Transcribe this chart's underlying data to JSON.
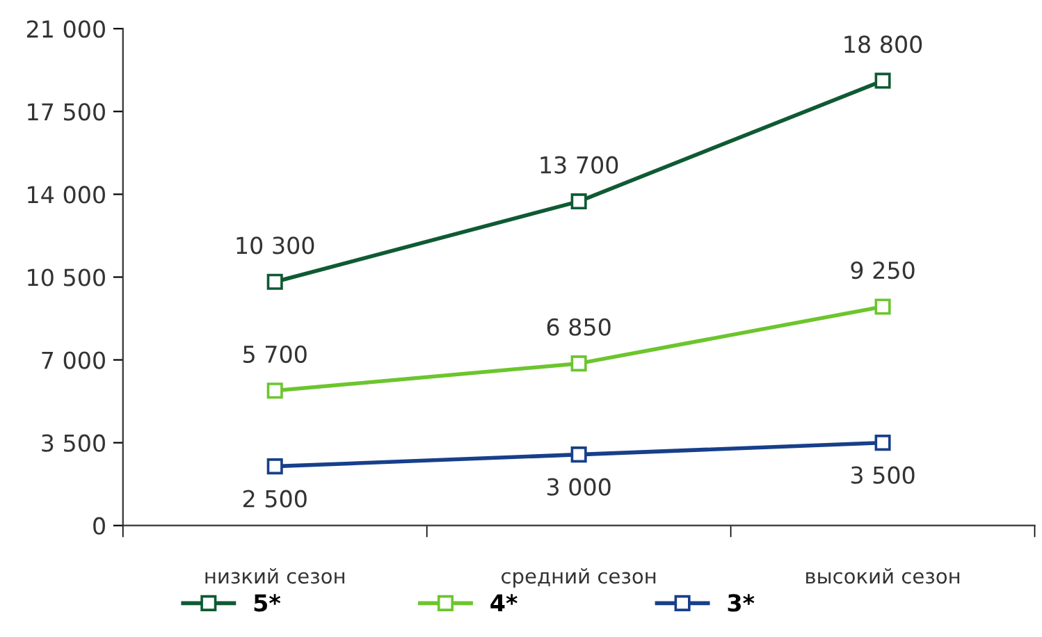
{
  "chart_data": {
    "type": "line",
    "categories": [
      "низкий сезон",
      "средний сезон",
      "высокий сезон"
    ],
    "series": [
      {
        "name": "5*",
        "color": "#0f5a34",
        "values": [
          10300,
          13700,
          18800
        ],
        "value_labels": [
          "10 300",
          "13 700",
          "18 800"
        ]
      },
      {
        "name": "4*",
        "color": "#6cc52d",
        "values": [
          5700,
          6850,
          9250
        ],
        "value_labels": [
          "5 700",
          "6 850",
          "9 250"
        ]
      },
      {
        "name": "3*",
        "color": "#173f8a",
        "values": [
          2500,
          3000,
          3500
        ],
        "value_labels": [
          "2 500",
          "3 000",
          "3 500"
        ]
      }
    ],
    "ylim": [
      0,
      21000
    ],
    "yticks": [
      0,
      {
        "value": 3500,
        "label": "3 500"
      },
      {
        "value": 7000,
        "label": "7 000"
      },
      {
        "value": 10500,
        "label": "10 500"
      },
      {
        "value": 14000,
        "label": "14 000"
      },
      {
        "value": 17500,
        "label": "17 500"
      },
      {
        "value": 21000,
        "label": "21 000"
      }
    ],
    "grid": false,
    "legend": "bottom",
    "marker": "square",
    "line_style": "solid"
  }
}
